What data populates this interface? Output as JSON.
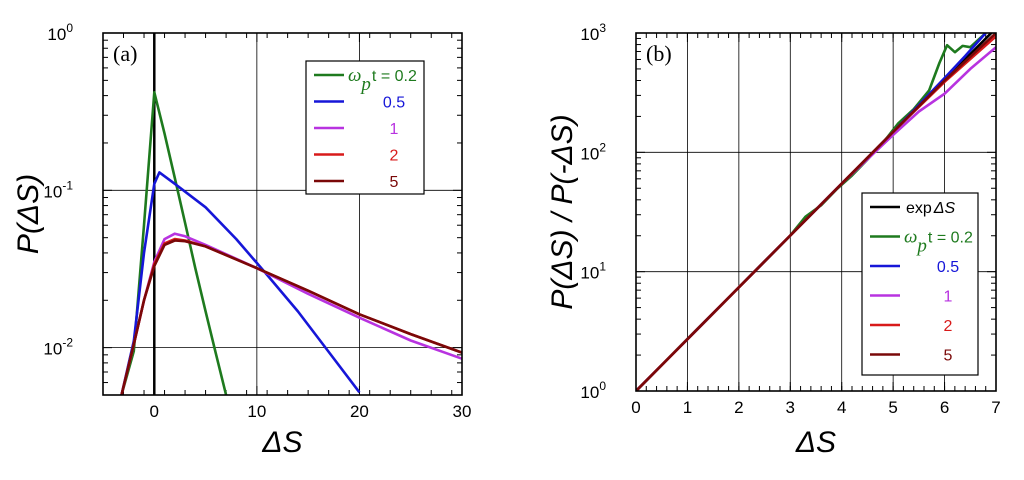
{
  "colors": {
    "green": "#1e7a1e",
    "blue": "#1616d8",
    "violet": "#b833e0",
    "red": "#d81a1a",
    "darkred": "#7a0808",
    "black": "#000000"
  },
  "chart_data": [
    {
      "type": "line",
      "panel_label": "(a)",
      "xlabel": "ΔS",
      "ylabel": "P(ΔS)",
      "xlim": [
        -5,
        30
      ],
      "ylim": [
        0.005,
        1
      ],
      "ylog": true,
      "grid": true,
      "legend_position": "top-right",
      "x_ticks": [
        {
          "value": 0,
          "label": "0"
        },
        {
          "value": 10,
          "label": "10"
        },
        {
          "value": 20,
          "label": "20"
        },
        {
          "value": 30,
          "label": "30"
        }
      ],
      "y_ticks": [
        {
          "value": 1,
          "base": "10",
          "exp": "0"
        },
        {
          "value": 0.1,
          "base": "10",
          "exp": "-1"
        },
        {
          "value": 0.01,
          "base": "10",
          "exp": "-2"
        }
      ],
      "legend": [
        {
          "label_prefix": "ω",
          "label_sub": "p",
          "label_suffix": "t = 0.2",
          "color": "green"
        },
        {
          "label_value": "0.5",
          "color": "blue"
        },
        {
          "label_value": "1",
          "color": "violet"
        },
        {
          "label_value": "2",
          "color": "red"
        },
        {
          "label_value": "5",
          "color": "darkred"
        }
      ],
      "series": [
        {
          "legend_index": 0,
          "color": "green",
          "x": [
            -3.2,
            -2,
            -1,
            0,
            1,
            2,
            3,
            4,
            5,
            6,
            7
          ],
          "y": [
            0.005,
            0.0095,
            0.06,
            0.42,
            0.23,
            0.12,
            0.062,
            0.032,
            0.017,
            0.0092,
            0.005
          ]
        },
        {
          "legend_index": 1,
          "color": "blue",
          "x": [
            -3.2,
            -2,
            -1,
            0,
            0.5,
            2,
            5,
            8,
            11,
            14,
            17,
            20
          ],
          "y": [
            0.005,
            0.011,
            0.04,
            0.11,
            0.13,
            0.11,
            0.078,
            0.049,
            0.029,
            0.017,
            0.0094,
            0.0052
          ]
        },
        {
          "legend_index": 2,
          "color": "violet",
          "x": [
            -3.2,
            -2,
            -1,
            0,
            1,
            2,
            3,
            5,
            10,
            15,
            20,
            25,
            30
          ],
          "y": [
            0.005,
            0.0105,
            0.02,
            0.035,
            0.049,
            0.053,
            0.051,
            0.045,
            0.032,
            0.022,
            0.0155,
            0.0111,
            0.0085
          ]
        },
        {
          "legend_index": 3,
          "color": "red",
          "x": [
            -3.2,
            -2,
            -1,
            0,
            1,
            2,
            3,
            5,
            10,
            15,
            20,
            25,
            30
          ],
          "y": [
            0.005,
            0.0105,
            0.02,
            0.034,
            0.046,
            0.049,
            0.048,
            0.044,
            0.032,
            0.023,
            0.0163,
            0.0122,
            0.0093
          ]
        },
        {
          "legend_index": 4,
          "color": "darkred",
          "x": [
            -3.2,
            -2,
            -1,
            0,
            1,
            2,
            3,
            5,
            10,
            15,
            20,
            25,
            30
          ],
          "y": [
            0.005,
            0.0105,
            0.02,
            0.033,
            0.045,
            0.048,
            0.0475,
            0.044,
            0.032,
            0.023,
            0.0163,
            0.0122,
            0.0093
          ]
        }
      ]
    },
    {
      "type": "line",
      "panel_label": "(b)",
      "xlabel": "ΔS",
      "ylabel": "P(ΔS) / P(-ΔS)",
      "xlim": [
        0,
        7
      ],
      "ylim": [
        1,
        1000
      ],
      "ylog": true,
      "grid": true,
      "legend_position": "bottom-right",
      "x_ticks": [
        {
          "value": 0,
          "label": "0"
        },
        {
          "value": 1,
          "label": "1"
        },
        {
          "value": 2,
          "label": "2"
        },
        {
          "value": 3,
          "label": "3"
        },
        {
          "value": 4,
          "label": "4"
        },
        {
          "value": 5,
          "label": "5"
        },
        {
          "value": 6,
          "label": "6"
        },
        {
          "value": 7,
          "label": "7"
        }
      ],
      "y_ticks": [
        {
          "value": 1,
          "base": "10",
          "exp": "0"
        },
        {
          "value": 10,
          "base": "10",
          "exp": "1"
        },
        {
          "value": 100,
          "base": "10",
          "exp": "2"
        },
        {
          "value": 1000,
          "base": "10",
          "exp": "3"
        }
      ],
      "legend": [
        {
          "label_plain": "exp",
          "label_italic": "ΔS",
          "color": "black"
        },
        {
          "label_prefix": "ω",
          "label_sub": "p",
          "label_suffix": "t = 0.2",
          "color": "green"
        },
        {
          "label_value": "0.5",
          "color": "blue"
        },
        {
          "label_value": "1",
          "color": "violet"
        },
        {
          "label_value": "2",
          "color": "red"
        },
        {
          "label_value": "5",
          "color": "darkred"
        }
      ],
      "series": [
        {
          "legend_index": 0,
          "color": "black",
          "x": [
            0,
            7
          ],
          "y": [
            1,
            1096.6
          ]
        },
        {
          "legend_index": 1,
          "color": "green",
          "x": [
            0,
            1,
            2,
            3,
            3.3,
            3.6,
            3.9,
            4.2,
            4.5,
            4.8,
            5.1,
            5.4,
            5.7,
            5.9,
            6.05,
            6.2,
            6.35,
            6.5,
            6.8
          ],
          "y": [
            1,
            2.72,
            7.39,
            20.1,
            29,
            36,
            49,
            64,
            87,
            120,
            175,
            230,
            330,
            560,
            790,
            690,
            780,
            760,
            1000
          ]
        },
        {
          "legend_index": 2,
          "color": "blue",
          "x": [
            0,
            2,
            4,
            5,
            6,
            6.4,
            6.8
          ],
          "y": [
            1,
            7.39,
            54.6,
            148,
            420,
            640,
            1000
          ]
        },
        {
          "legend_index": 3,
          "color": "violet",
          "x": [
            0,
            2,
            4,
            5,
            5.5,
            6,
            6.5,
            7
          ],
          "y": [
            1,
            7.39,
            54.6,
            140,
            220,
            310,
            500,
            760
          ]
        },
        {
          "legend_index": 4,
          "color": "red",
          "x": [
            0,
            2,
            4,
            5,
            6,
            7
          ],
          "y": [
            1,
            7.39,
            54.6,
            148,
            390,
            940
          ]
        },
        {
          "legend_index": 5,
          "color": "darkred",
          "x": [
            0,
            2,
            4,
            5,
            6,
            7
          ],
          "y": [
            1,
            7.39,
            54.6,
            148,
            400,
            1000
          ]
        }
      ]
    }
  ]
}
